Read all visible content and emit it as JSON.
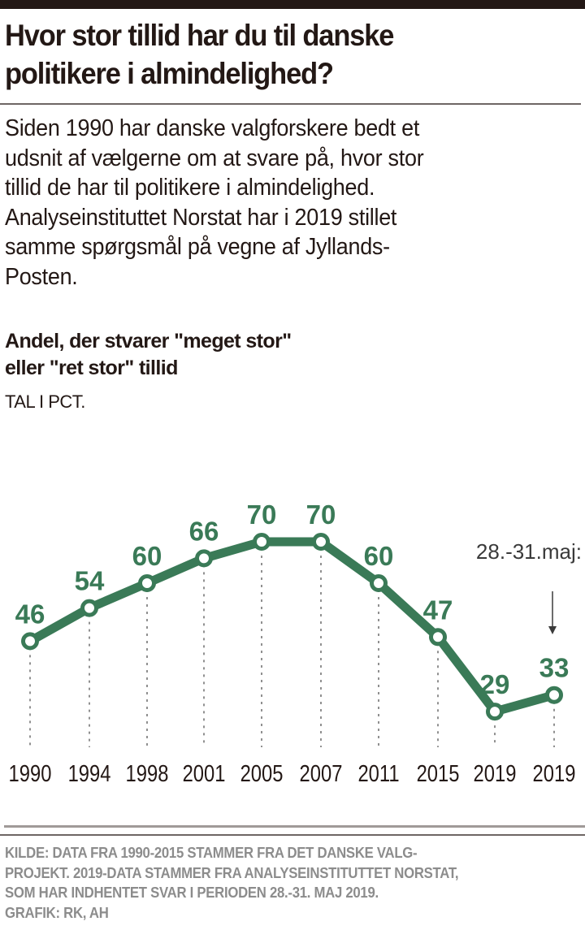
{
  "header": {
    "title": "Hvor stor tillid har du til danske\npolitikere i almindelighed?",
    "intro": "Siden 1990 har danske valgforskere bedt et\nudsnit af vælgerne om at svare på, hvor stor\ntillid de har til politikere i almindelighed.\nAnalyseinstituttet Norstat har i 2019 stillet\nsamme spørgsmål på vegne af Jyllands-\nPosten."
  },
  "chart_data": {
    "type": "line",
    "title": "Andel, der stvarer \"meget stor\"\neller \"ret stor\" tillid",
    "unit_label": "TAL I PCT.",
    "xlabel": "",
    "ylabel": "",
    "categories": [
      "1990",
      "1994",
      "1998",
      "2001",
      "2005",
      "2007",
      "2011",
      "2015",
      "2019",
      "2019"
    ],
    "series": [
      {
        "name": "Meget stor eller ret stor tillid",
        "values": [
          46,
          54,
          60,
          66,
          70,
          70,
          60,
          47,
          29,
          33
        ],
        "color": "#3a7a57"
      }
    ],
    "ylim": [
      20,
      75
    ],
    "grid": "vertical dotted lines at each point",
    "annotation": {
      "text": "28.-31.maj:",
      "target_index": 9,
      "arrow": "down"
    }
  },
  "footer": {
    "source": "KILDE: DATA FRA 1990-2015 STAMMER FRA DET DANSKE VALG-\nPROJEKT. 2019-DATA STAMMER FRA ANALYSEINSTITUTTET NORSTAT,\nSOM HAR INDHENTET SVAR I PERIODEN 28.-31. MAJ 2019.\nGRAFIK: RK, AH"
  },
  "colors": {
    "line": "#3a7a57",
    "text": "#231815",
    "source_text": "#8c8c8c",
    "guide": "#555555"
  }
}
